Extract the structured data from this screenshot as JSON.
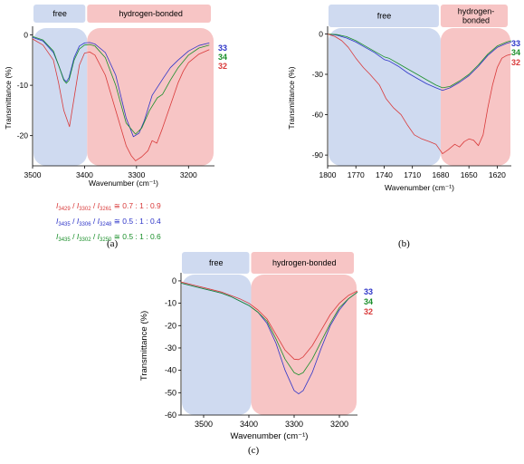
{
  "colors": {
    "s33": "#2e35c8",
    "s34": "#1a8f2a",
    "s32": "#d93a3a",
    "free_bg": "#cfdaf0",
    "hb_bg": "#f7c5c5",
    "axis": "#000000"
  },
  "chart_data": [
    {
      "type": "line",
      "panel_label": "(a)",
      "region_labels": {
        "free": "free",
        "hb": "hydrogen-bonded"
      },
      "xlabel": "Wavenumber (cm⁻¹)",
      "ylabel": "Transmittance (%)",
      "xlim": [
        3500,
        3150
      ],
      "ylim": [
        -26,
        1
      ],
      "region_split": 3395,
      "xticks": [
        3500,
        3400,
        3300,
        3200
      ],
      "yticks": [
        0,
        -10,
        -20
      ],
      "legend": [
        "33",
        "34",
        "32"
      ],
      "series": [
        {
          "name": "33",
          "color": "s33",
          "x": [
            3500,
            3480,
            3460,
            3450,
            3440,
            3435,
            3430,
            3420,
            3410,
            3400,
            3390,
            3380,
            3360,
            3340,
            3320,
            3306,
            3295,
            3285,
            3270,
            3248,
            3235,
            3220,
            3200,
            3180,
            3160
          ],
          "y": [
            -0.5,
            -1.2,
            -3.5,
            -6,
            -8.8,
            -9.3,
            -8.5,
            -4.5,
            -2.2,
            -1.6,
            -1.5,
            -1.8,
            -3.5,
            -8,
            -16.5,
            -20.2,
            -19.5,
            -17,
            -12,
            -8.5,
            -6.5,
            -5,
            -3.2,
            -2.1,
            -1.6
          ]
        },
        {
          "name": "34",
          "color": "s34",
          "x": [
            3500,
            3480,
            3460,
            3450,
            3440,
            3435,
            3430,
            3420,
            3410,
            3400,
            3390,
            3380,
            3360,
            3340,
            3320,
            3302,
            3290,
            3275,
            3260,
            3250,
            3235,
            3220,
            3200,
            3180,
            3160
          ],
          "y": [
            -0.3,
            -1,
            -3.2,
            -6,
            -9,
            -9.6,
            -9,
            -5,
            -2.8,
            -2,
            -1.9,
            -2.2,
            -4.5,
            -10,
            -17.5,
            -19.7,
            -18.5,
            -15,
            -12.5,
            -11.8,
            -9,
            -6.5,
            -4,
            -2.6,
            -2
          ]
        },
        {
          "name": "32",
          "color": "s32",
          "x": [
            3500,
            3480,
            3460,
            3450,
            3440,
            3429,
            3420,
            3410,
            3400,
            3390,
            3380,
            3360,
            3340,
            3320,
            3310,
            3302,
            3290,
            3278,
            3270,
            3261,
            3250,
            3240,
            3230,
            3220,
            3210,
            3200,
            3180,
            3160
          ],
          "y": [
            -0.8,
            -2,
            -5,
            -9.5,
            -15,
            -18.2,
            -12.5,
            -6,
            -3.6,
            -3.4,
            -4,
            -8,
            -15,
            -22,
            -24,
            -25,
            -24.2,
            -23,
            -21,
            -21.5,
            -18.5,
            -15.5,
            -12.5,
            -9.5,
            -7.2,
            -5.5,
            -3.8,
            -2.9
          ]
        }
      ],
      "ratios": [
        {
          "color": "s32",
          "i1": "3429",
          "i2": "3302",
          "i3": "3261",
          "text": "0.7 : 1 : 0.9"
        },
        {
          "color": "s33",
          "i1": "3435",
          "i2": "3306",
          "i3": "3248",
          "text": "0.5 : 1 : 0.4"
        },
        {
          "color": "s34",
          "i1": "3435",
          "i2": "3302",
          "i3": "3250",
          "text": "0.5 : 1 : 0.6"
        }
      ]
    },
    {
      "type": "line",
      "panel_label": "(b)",
      "region_labels": {
        "free": "free",
        "hb": "hydrogen-\nbonded"
      },
      "xlabel": "Wavenumber (cm⁻¹)",
      "ylabel": "Transmittance (%)",
      "xlim": [
        1800,
        1605
      ],
      "ylim": [
        -98,
        3
      ],
      "region_split": 1680,
      "xticks": [
        1800,
        1770,
        1740,
        1710,
        1680,
        1650,
        1620
      ],
      "yticks": [
        0,
        -30,
        -60,
        -90
      ],
      "legend": [
        "33",
        "34",
        "32"
      ],
      "series": [
        {
          "name": "33",
          "color": "s33",
          "x": [
            1800,
            1790,
            1780,
            1770,
            1760,
            1750,
            1740,
            1735,
            1725,
            1715,
            1705,
            1695,
            1685,
            1678,
            1670,
            1660,
            1650,
            1640,
            1630,
            1620,
            1610,
            1605
          ],
          "y": [
            0,
            -1,
            -3,
            -6,
            -10,
            -14,
            -19,
            -20,
            -24,
            -29,
            -33,
            -37,
            -40,
            -42,
            -40,
            -36,
            -31,
            -24,
            -16,
            -10,
            -7,
            -6
          ]
        },
        {
          "name": "34",
          "color": "s34",
          "x": [
            1800,
            1790,
            1780,
            1770,
            1760,
            1750,
            1740,
            1735,
            1725,
            1715,
            1705,
            1695,
            1685,
            1678,
            1670,
            1660,
            1650,
            1640,
            1630,
            1620,
            1610,
            1605
          ],
          "y": [
            0,
            -0.5,
            -2,
            -5,
            -9,
            -13,
            -17,
            -18,
            -22,
            -26,
            -30,
            -34,
            -38,
            -40,
            -39,
            -35,
            -30,
            -23,
            -15,
            -9,
            -6,
            -5
          ]
        },
        {
          "name": "32",
          "color": "s32",
          "x": [
            1800,
            1792,
            1785,
            1778,
            1770,
            1762,
            1755,
            1745,
            1738,
            1730,
            1722,
            1715,
            1708,
            1700,
            1692,
            1685,
            1678,
            1672,
            1665,
            1660,
            1655,
            1650,
            1645,
            1640,
            1635,
            1630,
            1625,
            1620,
            1615,
            1610,
            1605
          ],
          "y": [
            0,
            -2,
            -5,
            -10,
            -18,
            -25,
            -30,
            -38,
            -48,
            -55,
            -60,
            -68,
            -75,
            -78,
            -80,
            -82,
            -89,
            -86,
            -82,
            -84,
            -80,
            -78,
            -79,
            -83,
            -75,
            -55,
            -38,
            -25,
            -18,
            -16,
            -15
          ]
        }
      ]
    },
    {
      "type": "line",
      "panel_label": "(c)",
      "region_labels": {
        "free": "free",
        "hb": "hydrogen-bonded"
      },
      "xlabel": "Wavenumber (cm⁻¹)",
      "ylabel": "Transmittance (%)",
      "xlim": [
        3550,
        3160
      ],
      "ylim": [
        -60,
        2
      ],
      "region_split": 3395,
      "xticks": [
        3500,
        3400,
        3300,
        3200
      ],
      "yticks": [
        0,
        -10,
        -20,
        -30,
        -40,
        -50,
        -60
      ],
      "legend": [
        "33",
        "34",
        "32"
      ],
      "series": [
        {
          "name": "33",
          "color": "s33",
          "x": [
            3550,
            3520,
            3500,
            3480,
            3460,
            3440,
            3420,
            3400,
            3380,
            3360,
            3340,
            3320,
            3300,
            3290,
            3280,
            3260,
            3240,
            3220,
            3200,
            3180,
            3160
          ],
          "y": [
            -1,
            -2.5,
            -3.5,
            -4.5,
            -5.5,
            -7,
            -9,
            -11,
            -14,
            -19,
            -28,
            -40,
            -49,
            -50.5,
            -49,
            -41,
            -30,
            -20,
            -13,
            -8,
            -5
          ]
        },
        {
          "name": "34",
          "color": "s34",
          "x": [
            3550,
            3520,
            3500,
            3480,
            3460,
            3440,
            3420,
            3400,
            3380,
            3360,
            3340,
            3320,
            3300,
            3290,
            3280,
            3260,
            3240,
            3220,
            3200,
            3180,
            3160
          ],
          "y": [
            -1,
            -2.5,
            -3.5,
            -4.5,
            -5.5,
            -7,
            -9,
            -11,
            -14,
            -18,
            -26,
            -35,
            -41,
            -42,
            -41,
            -35,
            -27,
            -19,
            -12,
            -8,
            -5
          ]
        },
        {
          "name": "32",
          "color": "s32",
          "x": [
            3550,
            3520,
            3500,
            3480,
            3460,
            3440,
            3420,
            3400,
            3380,
            3360,
            3340,
            3320,
            3300,
            3290,
            3280,
            3260,
            3240,
            3220,
            3200,
            3180,
            3160
          ],
          "y": [
            -0.5,
            -2,
            -3,
            -4,
            -5,
            -6.5,
            -8,
            -10,
            -13,
            -17,
            -24,
            -31,
            -35,
            -35.2,
            -34,
            -29,
            -22,
            -15,
            -10,
            -6.5,
            -4.5
          ]
        }
      ]
    }
  ]
}
